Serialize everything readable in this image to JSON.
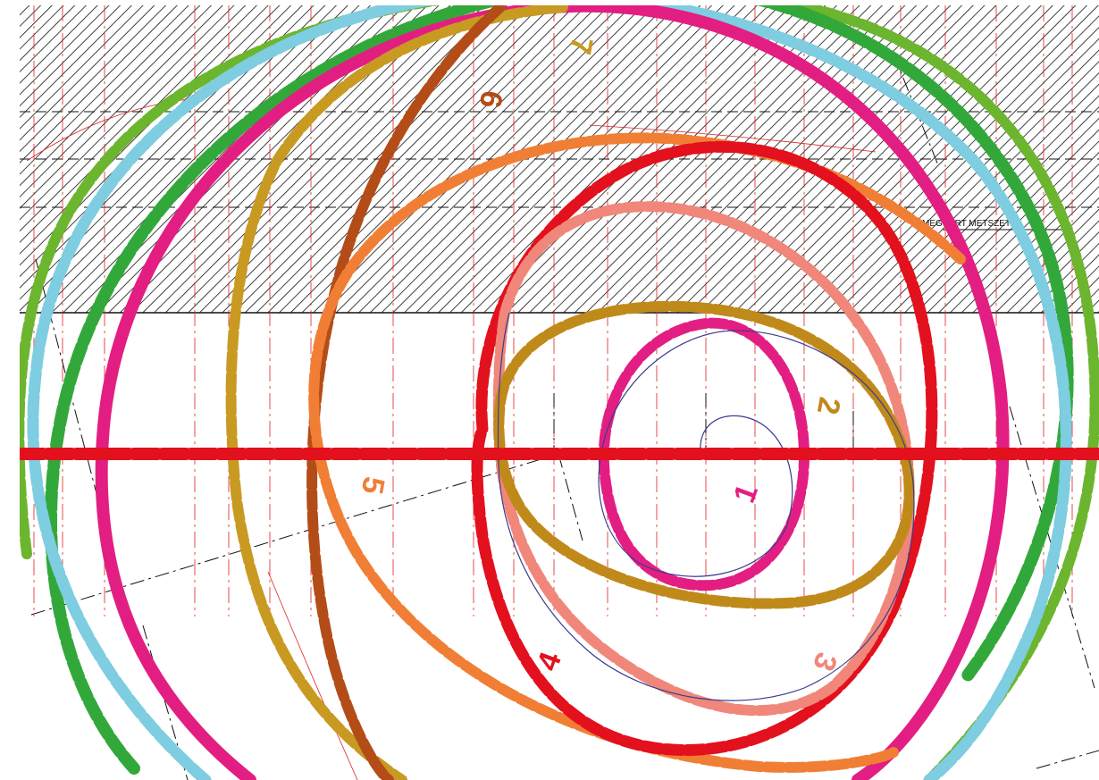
{
  "drawing": {
    "section_label": "MEGTÖRT METSZET",
    "colors": {
      "paper": "#ffffff",
      "hatch": "#111111",
      "guide_red": "#e0201e",
      "guide_black": "#111111",
      "plan_line": "#3b3b8f"
    }
  },
  "loops": [
    {
      "id": "1",
      "label": "1",
      "color": "#e31e82"
    },
    {
      "id": "2",
      "label": "2",
      "color": "#c08a1b"
    },
    {
      "id": "3",
      "label": "3",
      "color": "#f0877a"
    },
    {
      "id": "4",
      "label": "4",
      "color": "#e3101d"
    },
    {
      "id": "5",
      "label": "5",
      "color": "#f07f35"
    },
    {
      "id": "6",
      "label": "6",
      "color": "#b44c18"
    },
    {
      "id": "7",
      "label": "7",
      "color": "#c89a22"
    },
    {
      "id": "outer-pink",
      "label": "",
      "color": "#e31e82"
    },
    {
      "id": "outer-blue",
      "label": "",
      "color": "#7ecde0"
    },
    {
      "id": "outer-green",
      "label": "",
      "color": "#33a83a"
    },
    {
      "id": "outer-lime",
      "label": "",
      "color": "#6cb52e"
    }
  ]
}
